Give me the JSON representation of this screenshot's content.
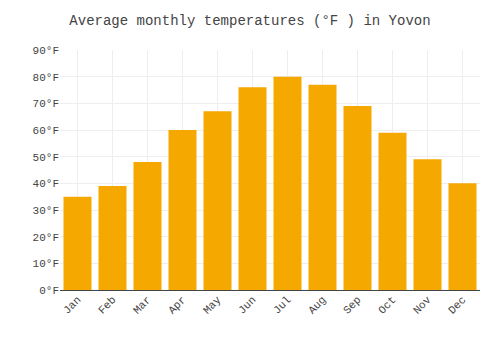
{
  "chart_data": {
    "type": "bar",
    "title": "Average monthly temperatures (°F ) in Yovon",
    "categories": [
      "Jan",
      "Feb",
      "Mar",
      "Apr",
      "May",
      "Jun",
      "Jul",
      "Aug",
      "Sep",
      "Oct",
      "Nov",
      "Dec"
    ],
    "values": [
      35,
      39,
      48,
      60,
      67,
      76,
      80,
      77,
      69,
      59,
      49,
      40
    ],
    "color": "#F5A800",
    "ylim": [
      0,
      90
    ],
    "yticks": [
      {
        "value": 0,
        "label": "0°F"
      },
      {
        "value": 10,
        "label": "10°F"
      },
      {
        "value": 20,
        "label": "20°F"
      },
      {
        "value": 30,
        "label": "30°F"
      },
      {
        "value": 40,
        "label": "40°F"
      },
      {
        "value": 50,
        "label": "50°F"
      },
      {
        "value": 60,
        "label": "60°F"
      },
      {
        "value": 70,
        "label": "70°F"
      },
      {
        "value": 80,
        "label": "80°F"
      },
      {
        "value": 90,
        "label": "90°F"
      }
    ],
    "grid": true
  }
}
